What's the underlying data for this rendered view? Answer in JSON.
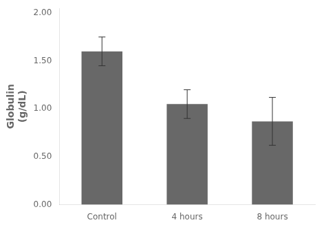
{
  "chart_data": {
    "type": "bar",
    "categories": [
      "Control",
      "4 hours",
      "8 hours"
    ],
    "values": [
      1.6,
      1.05,
      0.87
    ],
    "errors": [
      0.15,
      0.15,
      0.25
    ],
    "color": "#686868",
    "ylabel": "Globulin\n(g/dL)",
    "ylim": [
      0.0,
      2.05
    ],
    "yticks": [
      {
        "value": 0.0,
        "label": "0.00"
      },
      {
        "value": 0.5,
        "label": "0.50"
      },
      {
        "value": 1.0,
        "label": "1.00"
      },
      {
        "value": 1.5,
        "label": "1.50"
      },
      {
        "value": 2.0,
        "label": "2.00"
      }
    ],
    "grid": false
  }
}
